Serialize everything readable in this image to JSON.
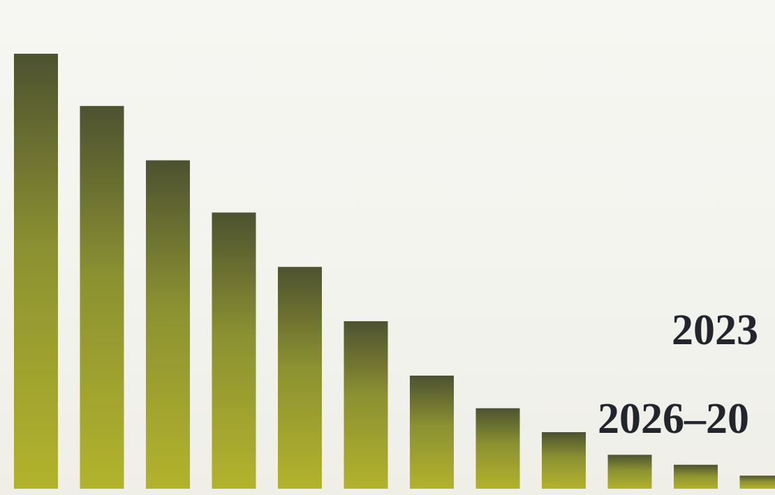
{
  "chart_data": {
    "type": "bar",
    "title": "",
    "xlabel": "",
    "ylabel": "",
    "ylim": [
      0,
      100
    ],
    "grid": false,
    "legend": "none",
    "values": [
      100,
      88,
      75.5,
      63.5,
      51,
      38.5,
      26,
      18.5,
      13,
      7.8,
      5.5,
      3
    ],
    "annotations": [
      "2023",
      "2026–20"
    ],
    "colors": {
      "bar_top": "#4d5230",
      "bar_mid": "#8c9131",
      "bar_bottom": "#b2b32c",
      "text": "#22252b",
      "background": "#f4f3ee"
    }
  }
}
